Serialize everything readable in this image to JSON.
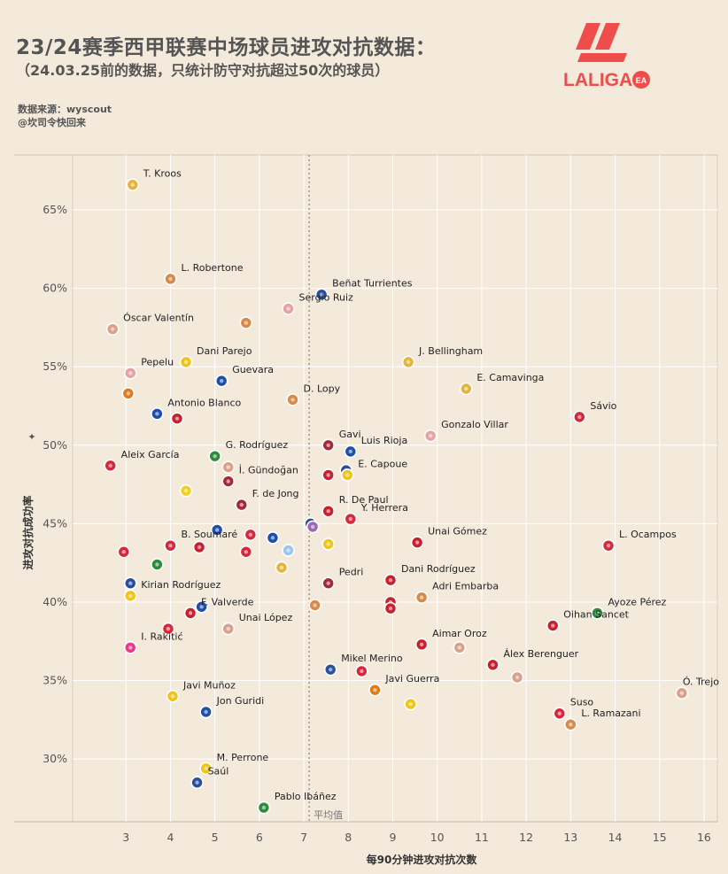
{
  "header": {
    "title": "23/24赛季西甲联赛中场球员进攻对抗数据：",
    "subtitle": "（24.03.25前的数据，只统计防守对抗超过50次的球员）",
    "source_line": "数据来源：wyscout",
    "author_line": "@坎司令快回来",
    "logo_text": "LALIGA",
    "logo_badge": "EA"
  },
  "colors": {
    "background": "#f4eadb",
    "logo_red": "#ef4c4c",
    "grid": "#ffffff",
    "avg_line": "#8a7f75"
  },
  "chart_data": {
    "type": "scatter",
    "title": "23/24赛季西甲联赛中场球员进攻对抗数据：",
    "subtitle": "（24.03.25前的数据，只统计防守对抗超过50次的球员）",
    "xlabel": "每90分钟进攻对抗次数",
    "ylabel": "进攻对抗成功率",
    "xlim": [
      1.8,
      16.3
    ],
    "ylim": [
      26,
      68.5
    ],
    "x_ticks": [
      "3",
      "4",
      "5",
      "6",
      "7",
      "8",
      "9",
      "10",
      "11",
      "12",
      "13",
      "14",
      "15",
      "16"
    ],
    "y_ticks": [
      "30%",
      "35%",
      "40%",
      "45%",
      "50%",
      "55%",
      "60%",
      "65%"
    ],
    "grid": true,
    "avg_line": {
      "x": 7.12,
      "label": "平均值"
    },
    "points": [
      {
        "name": "T. Kroos",
        "x": 3.15,
        "y": 66.6,
        "color": "#e4b43c",
        "label": "T. Kroos"
      },
      {
        "name": "L. Robertone",
        "x": 4.0,
        "y": 60.6,
        "color": "#d9894a",
        "label": "L. Robertone"
      },
      {
        "name": "Sergio Ruiz",
        "x": 6.65,
        "y": 58.7,
        "color": "#e8a0a0",
        "label": "Sergio Ruiz"
      },
      {
        "name": "Beñat Turrientes",
        "x": 7.4,
        "y": 59.6,
        "color": "#2a4f9a",
        "label": "Beñat Turrientes"
      },
      {
        "name": "Óscar Valentín",
        "x": 2.7,
        "y": 57.4,
        "color": "#d9a08a",
        "label": "Óscar Valentín"
      },
      {
        "name": "",
        "x": 5.7,
        "y": 57.8,
        "color": "#d9894a",
        "label": ""
      },
      {
        "name": "Dani Parejo",
        "x": 4.35,
        "y": 55.3,
        "color": "#f0c419",
        "label": "Dani Parejo"
      },
      {
        "name": "Guevara",
        "x": 5.15,
        "y": 54.1,
        "color": "#1e4fa8",
        "label": "Guevara"
      },
      {
        "name": "J. Bellingham",
        "x": 9.35,
        "y": 55.3,
        "color": "#e4b43c",
        "label": "J. Bellingham"
      },
      {
        "name": "Pepelu",
        "x": 3.1,
        "y": 54.6,
        "color": "#e8a0a0",
        "label": "Pepelu"
      },
      {
        "name": "",
        "x": 3.05,
        "y": 53.3,
        "color": "#e07b1a",
        "label": ""
      },
      {
        "name": "E. Camavinga",
        "x": 10.65,
        "y": 53.6,
        "color": "#e4b43c",
        "label": "E. Camavinga"
      },
      {
        "name": "D. Lopy",
        "x": 6.75,
        "y": 52.9,
        "color": "#d9894a",
        "label": "D. Lopy"
      },
      {
        "name": "Antonio Blanco",
        "x": 3.7,
        "y": 52.0,
        "color": "#1e4fa8",
        "label": "Antonio Blanco"
      },
      {
        "name": "",
        "x": 4.15,
        "y": 51.7,
        "color": "#c8202f",
        "label": ""
      },
      {
        "name": "Sávio",
        "x": 13.2,
        "y": 51.8,
        "color": "#d6283c",
        "label": "Sávio"
      },
      {
        "name": "Gonzalo Villar",
        "x": 9.85,
        "y": 50.6,
        "color": "#e8a0a0",
        "label": "Gonzalo Villar"
      },
      {
        "name": "Gavi",
        "x": 7.55,
        "y": 50.0,
        "color": "#a4283a",
        "label": "Gavi"
      },
      {
        "name": "Luis Rioja",
        "x": 8.05,
        "y": 49.6,
        "color": "#1e4fa8",
        "label": "Luis Rioja"
      },
      {
        "name": "Aleix García",
        "x": 2.65,
        "y": 48.7,
        "color": "#d6283c",
        "label": "Aleix García"
      },
      {
        "name": "G. Rodríguez",
        "x": 5.0,
        "y": 49.3,
        "color": "#2e8b3e",
        "label": "G. Rodríguez"
      },
      {
        "name": "",
        "x": 5.3,
        "y": 48.6,
        "color": "#d9a08a",
        "label": ""
      },
      {
        "name": "",
        "x": 7.95,
        "y": 48.4,
        "color": "#2a4f9a",
        "label": ""
      },
      {
        "name": "",
        "x": 7.55,
        "y": 48.1,
        "color": "#c8202f",
        "label": ""
      },
      {
        "name": "E. Capoue",
        "x": 7.98,
        "y": 48.1,
        "color": "#f0c419",
        "label": "E. Capoue"
      },
      {
        "name": "İ. Gündoğan",
        "x": 5.3,
        "y": 47.7,
        "color": "#a4283a",
        "label": "İ. Gündoğan"
      },
      {
        "name": "",
        "x": 4.35,
        "y": 47.1,
        "color": "#f0d020",
        "label": ""
      },
      {
        "name": "R. De Paul",
        "x": 7.55,
        "y": 45.8,
        "color": "#c8202f",
        "label": "R. De Paul"
      },
      {
        "name": "F. de Jong",
        "x": 5.6,
        "y": 46.2,
        "color": "#a4283a",
        "label": "F. de Jong"
      },
      {
        "name": "Y. Herrera",
        "x": 8.05,
        "y": 45.3,
        "color": "#d6283c",
        "label": "Y. Herrera"
      },
      {
        "name": "",
        "x": 7.15,
        "y": 45.0,
        "color": "#2a4f9a",
        "label": ""
      },
      {
        "name": "",
        "x": 7.2,
        "y": 44.8,
        "color": "#9a6ab0",
        "label": ""
      },
      {
        "name": "B. Soumaré",
        "x": 4.0,
        "y": 43.6,
        "color": "#d6283c",
        "label": "B. Soumaré"
      },
      {
        "name": "",
        "x": 5.05,
        "y": 44.6,
        "color": "#1e4fa8",
        "label": ""
      },
      {
        "name": "",
        "x": 5.8,
        "y": 44.3,
        "color": "#d6283c",
        "label": ""
      },
      {
        "name": "",
        "x": 6.3,
        "y": 44.1,
        "color": "#1e4fa8",
        "label": ""
      },
      {
        "name": "",
        "x": 7.55,
        "y": 43.7,
        "color": "#f0c419",
        "label": ""
      },
      {
        "name": "Unai Gómez",
        "x": 9.55,
        "y": 43.8,
        "color": "#c8202f",
        "label": "Unai Gómez"
      },
      {
        "name": "L. Ocampos",
        "x": 13.85,
        "y": 43.6,
        "color": "#d6283c",
        "label": "L. Ocampos"
      },
      {
        "name": "",
        "x": 2.95,
        "y": 43.2,
        "color": "#d6283c",
        "label": ""
      },
      {
        "name": "",
        "x": 4.65,
        "y": 43.5,
        "color": "#c8202f",
        "label": ""
      },
      {
        "name": "",
        "x": 5.7,
        "y": 43.2,
        "color": "#d6283c",
        "label": ""
      },
      {
        "name": "",
        "x": 6.65,
        "y": 43.3,
        "color": "#9bc6e8",
        "label": ""
      },
      {
        "name": "",
        "x": 3.7,
        "y": 42.4,
        "color": "#2e8b3e",
        "label": ""
      },
      {
        "name": "",
        "x": 6.5,
        "y": 42.2,
        "color": "#e4b43c",
        "label": ""
      },
      {
        "name": "Pedri",
        "x": 7.55,
        "y": 41.2,
        "color": "#a4283a",
        "label": "Pedri"
      },
      {
        "name": "Dani Rodríguez",
        "x": 8.95,
        "y": 41.4,
        "color": "#c8202f",
        "label": "Dani Rodríguez"
      },
      {
        "name": "",
        "x": 3.1,
        "y": 41.2,
        "color": "#2a4f9a",
        "label": ""
      },
      {
        "name": "Adri Embarba",
        "x": 9.65,
        "y": 40.3,
        "color": "#d9894a",
        "label": "Adri Embarba"
      },
      {
        "name": "Kirian Rodríguez",
        "x": 3.1,
        "y": 40.4,
        "color": "#f0c419",
        "label": "Kirian Rodríguez"
      },
      {
        "name": "",
        "x": 8.95,
        "y": 40.0,
        "color": "#c8202f",
        "label": ""
      },
      {
        "name": "",
        "x": 8.95,
        "y": 39.6,
        "color": "#c8202f",
        "label": ""
      },
      {
        "name": "",
        "x": 7.25,
        "y": 39.8,
        "color": "#d9894a",
        "label": ""
      },
      {
        "name": "",
        "x": 4.7,
        "y": 39.7,
        "color": "#1e4fa8",
        "label": ""
      },
      {
        "name": "F. Valverde",
        "x": 4.45,
        "y": 39.3,
        "color": "#c8202f",
        "label": "F. Valverde"
      },
      {
        "name": "Oihan Sancet",
        "x": 12.6,
        "y": 38.5,
        "color": "#c8202f",
        "label": "Oihan Sancet"
      },
      {
        "name": "Ayoze Pérez",
        "x": 13.6,
        "y": 39.3,
        "color": "#2e8b3e",
        "label": "Ayoze Pérez"
      },
      {
        "name": "Unai López",
        "x": 5.3,
        "y": 38.3,
        "color": "#d9a08a",
        "label": "Unai López"
      },
      {
        "name": "",
        "x": 3.95,
        "y": 38.3,
        "color": "#d6283c",
        "label": ""
      },
      {
        "name": "Aimar Oroz",
        "x": 9.65,
        "y": 37.3,
        "color": "#c8202f",
        "label": "Aimar Oroz"
      },
      {
        "name": "",
        "x": 10.5,
        "y": 37.1,
        "color": "#d9a08a",
        "label": ""
      },
      {
        "name": "I. Rakitić",
        "x": 3.1,
        "y": 37.1,
        "color": "#e83a8a",
        "label": "I. Rakitić"
      },
      {
        "name": "Álex Berenguer",
        "x": 11.25,
        "y": 36.0,
        "color": "#c8202f",
        "label": "Álex Berenguer"
      },
      {
        "name": "Mikel Merino",
        "x": 7.6,
        "y": 35.7,
        "color": "#2a4f9a",
        "label": "Mikel Merino"
      },
      {
        "name": "",
        "x": 8.3,
        "y": 35.6,
        "color": "#d6283c",
        "label": ""
      },
      {
        "name": "Javi Guerra",
        "x": 8.6,
        "y": 34.4,
        "color": "#e07b1a",
        "label": "Javi Guerra"
      },
      {
        "name": "",
        "x": 11.8,
        "y": 35.2,
        "color": "#d9a08a",
        "label": ""
      },
      {
        "name": "Ó. Trejo",
        "x": 15.5,
        "y": 34.2,
        "color": "#d9a08a",
        "label": "Ó. Trejo"
      },
      {
        "name": "Javi Muñoz",
        "x": 4.05,
        "y": 34.0,
        "color": "#f0c419",
        "label": "Javi Muñoz"
      },
      {
        "name": "",
        "x": 9.4,
        "y": 33.5,
        "color": "#f0c419",
        "label": ""
      },
      {
        "name": "Jon Guridi",
        "x": 4.8,
        "y": 33.0,
        "color": "#1e4fa8",
        "label": "Jon Guridi"
      },
      {
        "name": "Suso",
        "x": 12.75,
        "y": 32.9,
        "color": "#d6283c",
        "label": "Suso"
      },
      {
        "name": "L. Ramazani",
        "x": 13.0,
        "y": 32.2,
        "color": "#d9894a",
        "label": "L. Ramazani"
      },
      {
        "name": "M. Perrone",
        "x": 4.8,
        "y": 29.4,
        "color": "#f0c419",
        "label": "M. Perrone"
      },
      {
        "name": "Saúl",
        "x": 4.6,
        "y": 28.5,
        "color": "#2a4f9a",
        "label": "Saúl"
      },
      {
        "name": "Pablo Ibáñez",
        "x": 6.1,
        "y": 26.9,
        "color": "#2e8b3e",
        "label": "Pablo Ibáñez"
      }
    ]
  }
}
